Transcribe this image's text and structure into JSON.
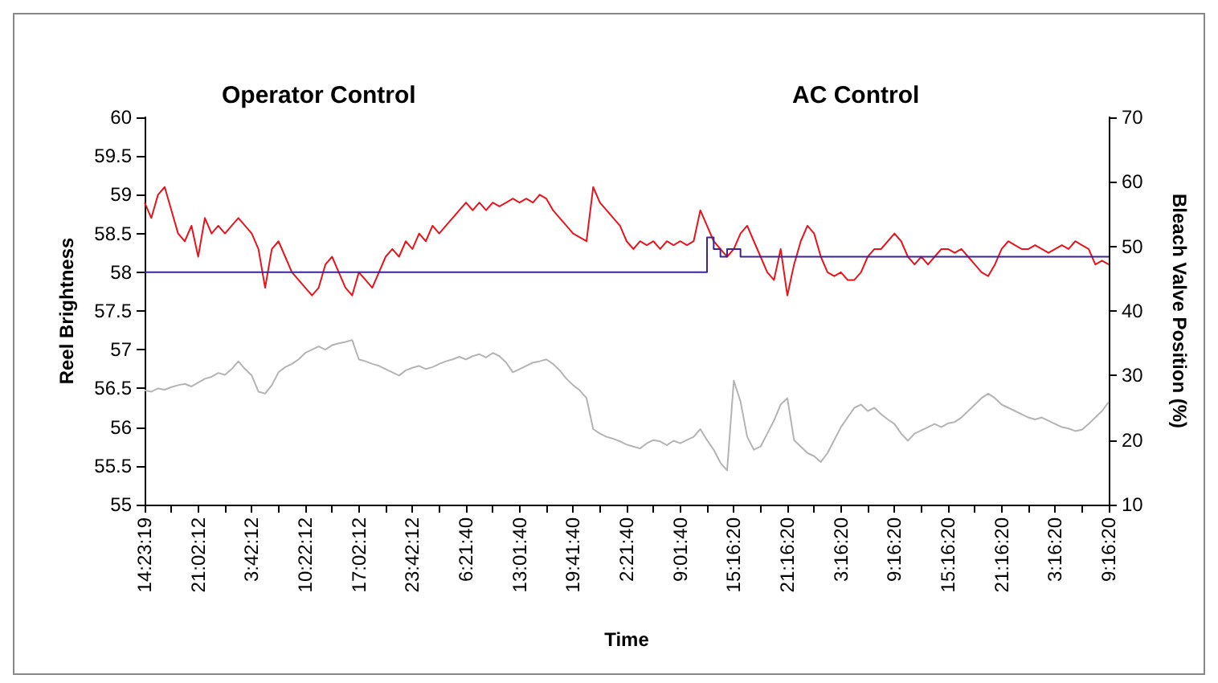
{
  "chart_data": {
    "type": "line",
    "xlabel": "Time",
    "ylabel": "Reel Brightness",
    "y2label": "Bleach Valve Position (%)",
    "annotations": [
      "Operator Control",
      "AC Control"
    ],
    "categories": [
      "14:23:19",
      null,
      null,
      null,
      null,
      null,
      null,
      null,
      "21:02:12",
      null,
      null,
      null,
      null,
      null,
      null,
      null,
      "3:42:12",
      null,
      null,
      null,
      null,
      null,
      null,
      null,
      "10:22:12",
      null,
      null,
      null,
      null,
      null,
      null,
      null,
      "17:02:12",
      null,
      null,
      null,
      null,
      null,
      null,
      null,
      "23:42:12",
      null,
      null,
      null,
      null,
      null,
      null,
      null,
      "6:21:40",
      null,
      null,
      null,
      null,
      null,
      null,
      null,
      "13:01:40",
      null,
      null,
      null,
      null,
      null,
      null,
      null,
      "19:41:40",
      null,
      null,
      null,
      null,
      null,
      null,
      null,
      "2:21:40",
      null,
      null,
      null,
      null,
      null,
      null,
      null,
      "9:01:40",
      null,
      null,
      null,
      null,
      null,
      null,
      null,
      "15:16:20",
      null,
      null,
      null,
      null,
      null,
      null,
      null,
      "21:16:20",
      null,
      null,
      null,
      null,
      null,
      null,
      null,
      "3:16:20",
      null,
      null,
      null,
      null,
      null,
      null,
      null,
      "9:16:20",
      null,
      null,
      null,
      null,
      null,
      null,
      null,
      "15:16:20",
      null,
      null,
      null,
      null,
      null,
      null,
      null,
      "21:16:20",
      null,
      null,
      null,
      null,
      null,
      null,
      null,
      "3:16:20",
      null,
      null,
      null,
      null,
      null,
      null,
      null,
      "9:16:20"
    ],
    "series": [
      {
        "color": "#e8141b",
        "values": [
          58.9,
          58.7,
          59.0,
          59.1,
          58.8,
          58.5,
          58.4,
          58.6,
          58.2,
          58.7,
          58.5,
          58.6,
          58.5,
          58.6,
          58.7,
          58.6,
          58.5,
          58.3,
          57.8,
          58.3,
          58.4,
          58.2,
          58.0,
          57.9,
          57.8,
          57.7,
          57.8,
          58.1,
          58.2,
          58.0,
          57.8,
          57.7,
          58.0,
          57.9,
          57.8,
          58.0,
          58.2,
          58.3,
          58.2,
          58.4,
          58.3,
          58.5,
          58.4,
          58.6,
          58.5,
          58.6,
          58.7,
          58.8,
          58.9,
          58.8,
          58.9,
          58.8,
          58.9,
          58.85,
          58.9,
          58.95,
          58.9,
          58.95,
          58.9,
          59.0,
          58.95,
          58.8,
          58.7,
          58.6,
          58.5,
          58.45,
          58.4,
          59.1,
          58.9,
          58.8,
          58.7,
          58.6,
          58.4,
          58.3,
          58.4,
          58.35,
          58.4,
          58.3,
          58.4,
          58.35,
          58.4,
          58.35,
          58.4,
          58.8,
          58.6,
          58.4,
          58.3,
          58.2,
          58.3,
          58.5,
          58.6,
          58.4,
          58.2,
          58.0,
          57.9,
          58.3,
          57.7,
          58.1,
          58.4,
          58.6,
          58.5,
          58.2,
          58.0,
          57.95,
          58.0,
          57.9,
          57.9,
          58.0,
          58.2,
          58.3,
          58.3,
          58.4,
          58.5,
          58.4,
          58.2,
          58.1,
          58.2,
          58.1,
          58.2,
          58.3,
          58.3,
          58.25,
          58.3,
          58.2,
          58.1,
          58.0,
          57.95,
          58.1,
          58.3,
          58.4,
          58.35,
          58.3,
          58.3,
          58.35,
          58.3,
          58.25,
          58.3,
          58.35,
          58.3,
          58.4,
          58.35,
          58.3,
          58.1,
          58.15,
          58.1
        ]
      },
      {
        "color": "#b4b4b4",
        "axis": "y2",
        "values": [
          27.7,
          27.5,
          28,
          27.8,
          28.2,
          28.5,
          28.7,
          28.3,
          28.9,
          29.5,
          29.8,
          30.4,
          30.1,
          31,
          32.2,
          31.0,
          30.0,
          27.5,
          27.2,
          28.5,
          30.5,
          31.3,
          31.8,
          32.5,
          33.5,
          34.0,
          34.5,
          34.0,
          34.7,
          35.0,
          35.2,
          35.5,
          32.5,
          32.2,
          31.8,
          31.5,
          31.0,
          30.5,
          30.0,
          30.8,
          31.2,
          31.5,
          31.0,
          31.3,
          31.8,
          32.2,
          32.5,
          32.9,
          32.5,
          33.0,
          33.3,
          32.8,
          33.5,
          33.0,
          32.0,
          30.5,
          31.0,
          31.5,
          32.0,
          32.2,
          32.5,
          31.8,
          30.8,
          29.5,
          28.5,
          27.7,
          26.5,
          21.7,
          21.0,
          20.5,
          20.2,
          19.8,
          19.3,
          19.0,
          18.7,
          19.5,
          20.0,
          19.8,
          19.2,
          19.9,
          19.5,
          20.0,
          20.5,
          21.7,
          20.0,
          18.5,
          16.5,
          15.3,
          29.2,
          26.0,
          20.5,
          18.5,
          19.0,
          21.0,
          23.0,
          25.5,
          26.5,
          20.0,
          19.0,
          18.0,
          17.5,
          16.6,
          18.0,
          20.0,
          22.0,
          23.5,
          25.0,
          25.5,
          24.5,
          25.0,
          24.0,
          23.2,
          22.5,
          21.0,
          19.9,
          21.0,
          21.5,
          22.0,
          22.5,
          22.0,
          22.6,
          22.8,
          23.5,
          24.5,
          25.5,
          26.5,
          27.2,
          26.5,
          25.5,
          25.0,
          24.5,
          24.0,
          23.5,
          23.2,
          23.5,
          23.0,
          22.5,
          22.0,
          21.8,
          21.4,
          21.6,
          22.5,
          23.5,
          24.5,
          25.9
        ]
      },
      {
        "color": "#3b239b",
        "type": "step",
        "values": [
          58,
          58,
          58,
          58,
          58,
          58,
          58,
          58,
          58,
          58,
          58,
          58,
          58,
          58,
          58,
          58,
          58,
          58,
          58,
          58,
          58,
          58,
          58,
          58,
          58,
          58,
          58,
          58,
          58,
          58,
          58,
          58,
          58,
          58,
          58,
          58,
          58,
          58,
          58,
          58,
          58,
          58,
          58,
          58,
          58,
          58,
          58,
          58,
          58,
          58,
          58,
          58,
          58,
          58,
          58,
          58,
          58,
          58,
          58,
          58,
          58,
          58,
          58,
          58,
          58,
          58,
          58,
          58,
          58,
          58,
          58,
          58,
          58,
          58,
          58,
          58,
          58,
          58,
          58,
          58,
          58,
          58,
          58,
          58,
          58.45,
          58.3,
          58.2,
          58.3,
          58.3,
          58.2,
          58.2,
          58.2,
          58.2,
          58.2,
          58.2,
          58.2,
          58.2,
          58.2,
          58.2,
          58.2,
          58.2,
          58.2,
          58.2,
          58.2,
          58.2,
          58.2,
          58.2,
          58.2,
          58.2,
          58.2,
          58.2,
          58.2,
          58.2,
          58.2,
          58.2,
          58.2,
          58.2,
          58.2,
          58.2,
          58.2,
          58.2,
          58.2,
          58.2,
          58.2,
          58.2,
          58.2,
          58.2,
          58.2,
          58.2,
          58.2,
          58.2,
          58.2,
          58.2,
          58.2,
          58.2,
          58.2,
          58.2,
          58.2,
          58.2,
          58.2,
          58.2,
          58.2,
          58.2,
          58.2,
          58.2
        ]
      }
    ],
    "ylim": [
      55,
      60
    ],
    "yticks": [
      55,
      55.5,
      56,
      56.5,
      57,
      57.5,
      58,
      58.5,
      59,
      59.5,
      60
    ],
    "y2lim": [
      10,
      70
    ],
    "y2ticks": [
      10,
      20,
      30,
      40,
      50,
      60,
      70
    ],
    "grid": false,
    "marker": "none",
    "line_style": "solid"
  }
}
